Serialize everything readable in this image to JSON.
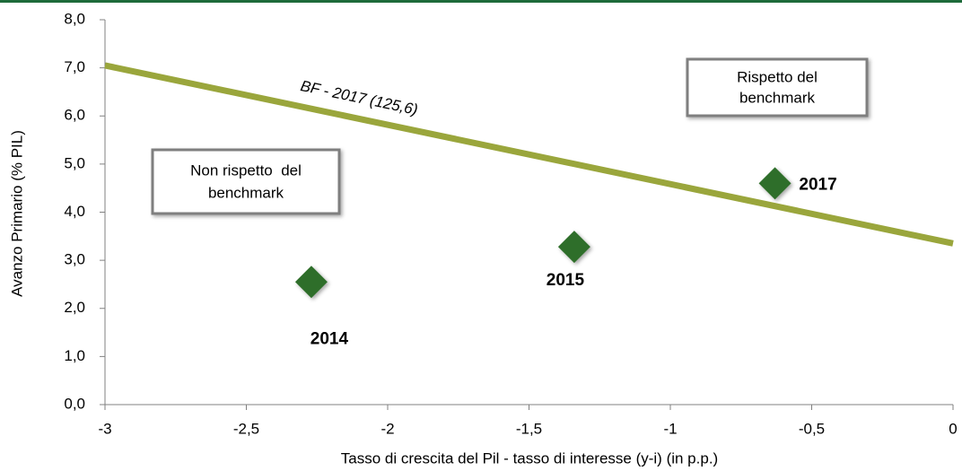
{
  "chart_data": {
    "type": "scatter",
    "x_label": "Tasso di crescita del Pil - tasso di interesse (y-i) (in p.p.)",
    "y_label": "Avanzo Primario (% PIL)",
    "xlim": [
      -3,
      0
    ],
    "ylim": [
      0,
      8
    ],
    "xticks": [
      -3,
      {
        "value": -2.5,
        "label": "-2,5"
      },
      -2,
      {
        "value": -1.5,
        "label": "-1,5"
      },
      -1,
      {
        "value": -0.5,
        "label": "-0,5"
      },
      0
    ],
    "yticks": [
      {
        "value": 0,
        "label": "0,0"
      },
      {
        "value": 1,
        "label": "1,0"
      },
      {
        "value": 2,
        "label": "2,0"
      },
      {
        "value": 3,
        "label": "3,0"
      },
      {
        "value": 4,
        "label": "4,0"
      },
      {
        "value": 5,
        "label": "5,0"
      },
      {
        "value": 6,
        "label": "6,0"
      },
      {
        "value": 7,
        "label": "7,0"
      },
      {
        "value": 8,
        "label": "8,0"
      }
    ],
    "series": [
      {
        "color": "#2f6e2a",
        "x": [
          -2.27,
          -1.34,
          -0.63
        ],
        "values": [
          2.55,
          3.28,
          4.6
        ],
        "labels": [
          "2014",
          "2015",
          "2017"
        ]
      }
    ],
    "reference_line": {
      "label": "BF - 2017 (125,6)",
      "color": "#9aa63c",
      "x": [
        -3,
        0
      ],
      "values": [
        7.05,
        3.35
      ]
    },
    "annotations": [
      [
        "Rispetto del",
        "benchmark"
      ],
      [
        "Non rispetto  del",
        "benchmark"
      ]
    ]
  }
}
